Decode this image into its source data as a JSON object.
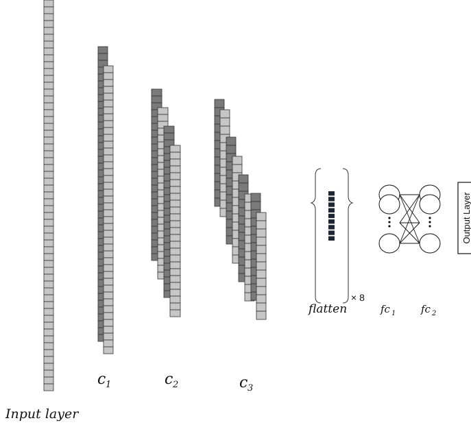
{
  "labels": {
    "input_layer": "Input layer",
    "c1": "c",
    "c1_sub": "1",
    "c2": "c",
    "c2_sub": "2",
    "c3": "c",
    "c3_sub": "3",
    "flatten": "flatten",
    "times": "× 8",
    "fc1": "fc",
    "fc1_sub": "1",
    "fc2": "fc",
    "fc2_sub": "2",
    "output_layer": "Output Layer"
  },
  "colors": {
    "light_cell": "#c6c6c6",
    "dark_cell": "#7a7a7a",
    "flatten_cell": "#1c2733",
    "stroke": "#333333"
  }
}
